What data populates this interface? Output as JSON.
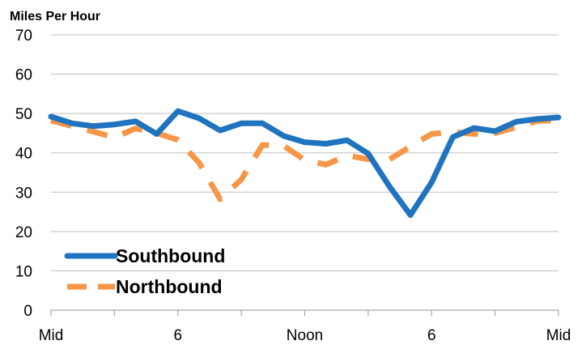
{
  "chart_data": {
    "type": "line",
    "title": "",
    "ylabel": "Miles Per Hour",
    "xlabel": "",
    "ylim": [
      0,
      70
    ],
    "yticks": [
      0,
      10,
      20,
      30,
      40,
      50,
      60,
      70
    ],
    "x_tick_labels": [
      "Mid",
      "6",
      "Noon",
      "6",
      "Mid"
    ],
    "grid": true,
    "legend_position": "bottom-left",
    "x_hours": [
      0,
      1,
      2,
      3,
      4,
      5,
      6,
      7,
      8,
      9,
      10,
      11,
      12,
      13,
      14,
      15,
      16,
      17,
      18,
      19,
      20,
      21,
      22,
      23,
      24
    ],
    "series": [
      {
        "name": "Southbound",
        "color": "#1f73bf",
        "style": "solid",
        "values": [
          49.2,
          47.5,
          46.8,
          47.2,
          48.0,
          44.8,
          50.6,
          48.8,
          45.7,
          47.5,
          47.5,
          44.3,
          42.7,
          42.3,
          43.2,
          39.8,
          31.5,
          24.2,
          32.5,
          44.0,
          46.3,
          45.5,
          47.9,
          48.6,
          49.0
        ]
      },
      {
        "name": "Northbound",
        "color": "#f79646",
        "style": "dashed",
        "values": [
          48.2,
          46.8,
          45.4,
          43.9,
          46.2,
          45.0,
          43.3,
          37.5,
          28.2,
          33.2,
          42.0,
          41.8,
          38.2,
          37.0,
          39.3,
          38.4,
          38.3,
          41.6,
          44.8,
          45.3,
          44.8,
          45.0,
          46.5,
          48.1,
          48.3
        ]
      }
    ]
  }
}
